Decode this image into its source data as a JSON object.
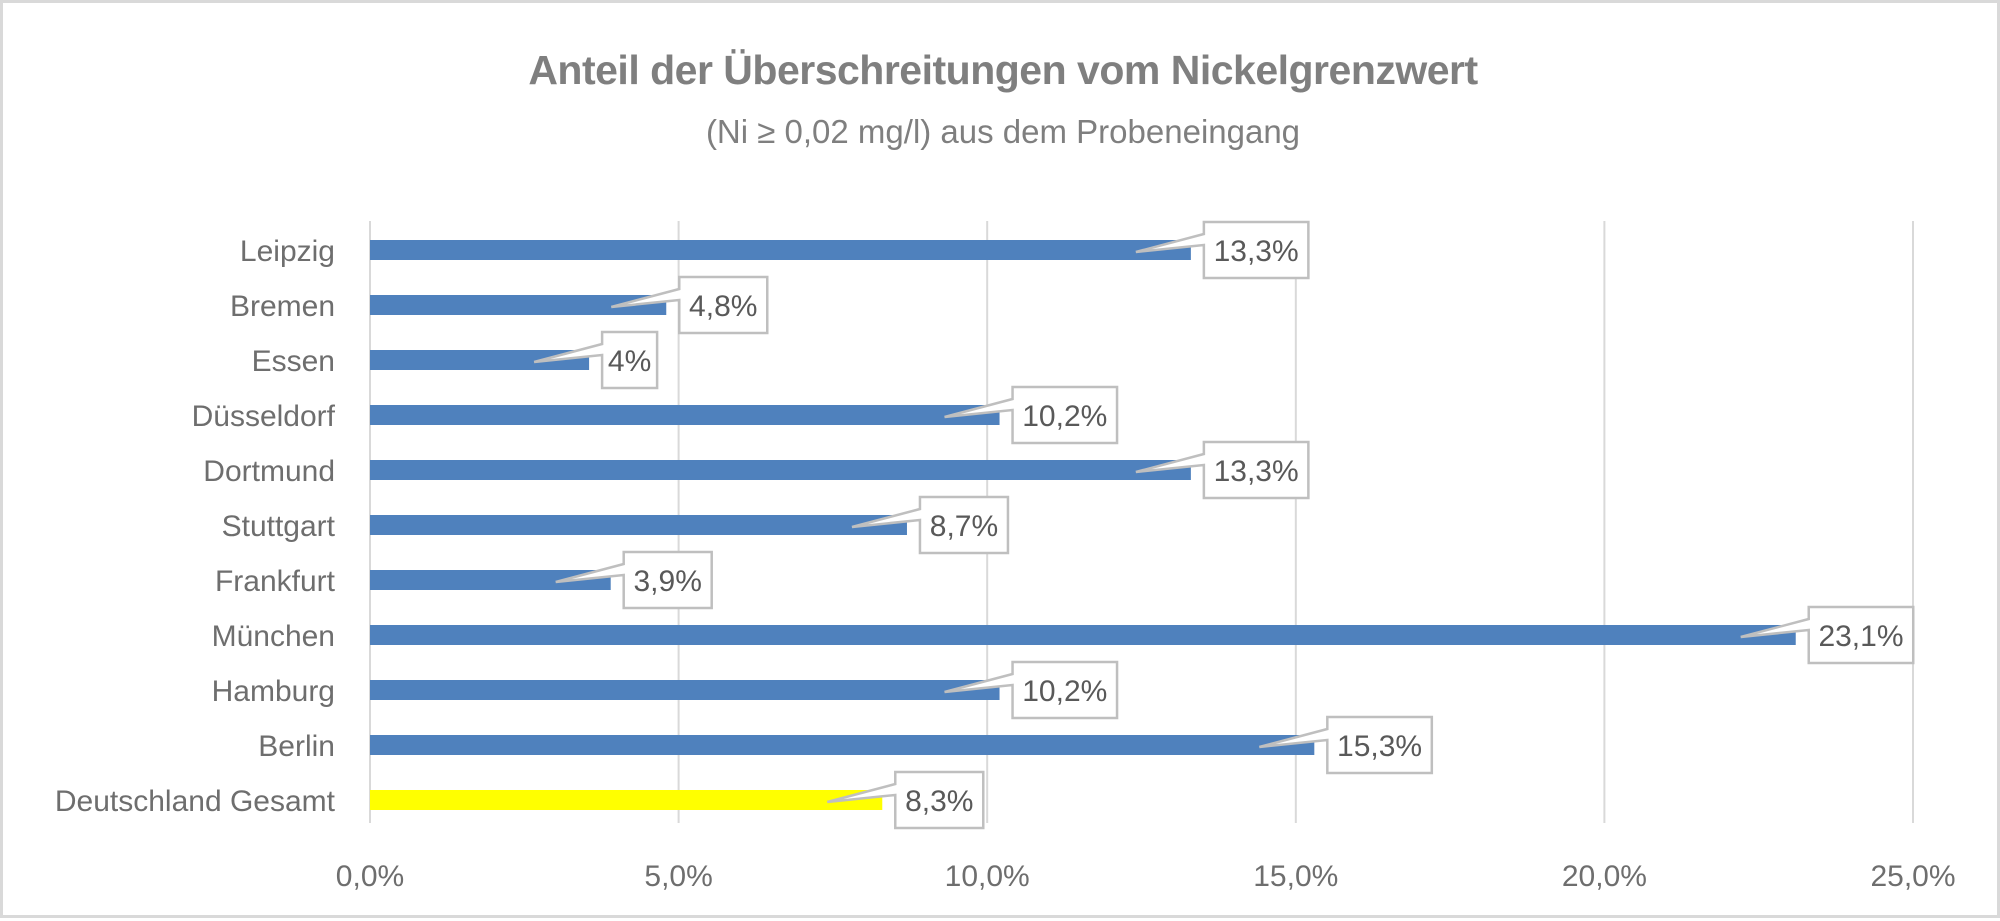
{
  "chart_data": {
    "type": "bar",
    "orientation": "horizontal",
    "title": "Anteil der Überschreitungen vom Nickelgrenzwert",
    "subtitle": "(Ni ≥ 0,02 mg/l) aus dem Probeneingang",
    "xlabel": "",
    "ylabel": "",
    "xlim": [
      0,
      25
    ],
    "x_ticks": [
      0,
      5,
      10,
      15,
      20,
      25
    ],
    "x_tick_labels": [
      "0,0%",
      "5,0%",
      "10,0%",
      "15,0%",
      "20,0%",
      "25,0%"
    ],
    "grid": "vertical",
    "legend": "none",
    "categories": [
      "Leipzig",
      "Bremen",
      "Essen",
      "Düsseldorf",
      "Dortmund",
      "Stuttgart",
      "Frankfurt",
      "München",
      "Hamburg",
      "Berlin",
      "Deutschland Gesamt"
    ],
    "values": [
      13.3,
      4.8,
      3.55,
      10.2,
      13.3,
      8.7,
      3.9,
      23.1,
      10.2,
      15.3,
      8.3
    ],
    "data_labels": [
      "13,3%",
      "4,8%",
      "4%",
      "10,2%",
      "13,3%",
      "8,7%",
      "3,9%",
      "23,1%",
      "10,2%",
      "15,3%",
      "8,3%"
    ],
    "colors": [
      "#4f81bd",
      "#4f81bd",
      "#4f81bd",
      "#4f81bd",
      "#4f81bd",
      "#4f81bd",
      "#4f81bd",
      "#4f81bd",
      "#4f81bd",
      "#4f81bd",
      "#ffff00"
    ],
    "bar_color": "#4f81bd",
    "highlight_color": "#ffff00",
    "gridline_color": "#d9d9d9",
    "text_color": "#7f7f7f"
  }
}
